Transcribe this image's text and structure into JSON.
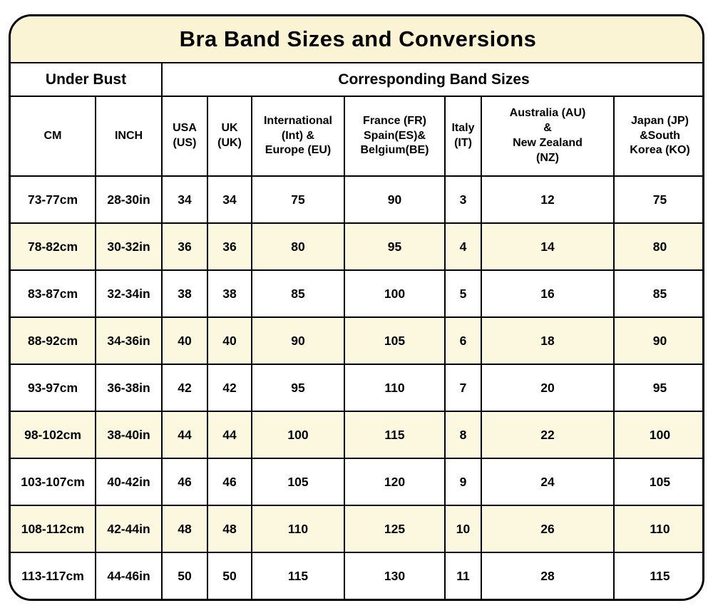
{
  "colors": {
    "title_bg": "#faf4d4",
    "row_highlight_bg": "#fcf8e0",
    "border": "#000000",
    "text": "#000000"
  },
  "chart_data": {
    "type": "table",
    "title": "Bra Band Sizes and Conversions",
    "group_headers": [
      {
        "label": "Under Bust",
        "span": 2
      },
      {
        "label": "Corresponding Band Sizes",
        "span": 7
      }
    ],
    "columns": [
      "CM",
      "INCH",
      "USA\n(US)",
      "UK\n(UK)",
      "International\n(Int) &\nEurope (EU)",
      "France (FR)\nSpain(ES)&\nBelgium(BE)",
      "Italy\n(IT)",
      "Australia (AU)\n&\nNew Zealand\n(NZ)",
      "Japan (JP)\n&South\nKorea (KO)"
    ],
    "rows": [
      {
        "highlight": false,
        "cells": [
          "73-77cm",
          "28-30in",
          "34",
          "34",
          "75",
          "90",
          "3",
          "12",
          "75"
        ]
      },
      {
        "highlight": true,
        "cells": [
          "78-82cm",
          "30-32in",
          "36",
          "36",
          "80",
          "95",
          "4",
          "14",
          "80"
        ]
      },
      {
        "highlight": false,
        "cells": [
          "83-87cm",
          "32-34in",
          "38",
          "38",
          "85",
          "100",
          "5",
          "16",
          "85"
        ]
      },
      {
        "highlight": true,
        "cells": [
          "88-92cm",
          "34-36in",
          "40",
          "40",
          "90",
          "105",
          "6",
          "18",
          "90"
        ]
      },
      {
        "highlight": false,
        "cells": [
          "93-97cm",
          "36-38in",
          "42",
          "42",
          "95",
          "110",
          "7",
          "20",
          "95"
        ]
      },
      {
        "highlight": true,
        "cells": [
          "98-102cm",
          "38-40in",
          "44",
          "44",
          "100",
          "115",
          "8",
          "22",
          "100"
        ]
      },
      {
        "highlight": false,
        "cells": [
          "103-107cm",
          "40-42in",
          "46",
          "46",
          "105",
          "120",
          "9",
          "24",
          "105"
        ]
      },
      {
        "highlight": true,
        "cells": [
          "108-112cm",
          "42-44in",
          "48",
          "48",
          "110",
          "125",
          "10",
          "26",
          "110"
        ]
      },
      {
        "highlight": false,
        "cells": [
          "113-117cm",
          "44-46in",
          "50",
          "50",
          "115",
          "130",
          "11",
          "28",
          "115"
        ]
      }
    ]
  }
}
